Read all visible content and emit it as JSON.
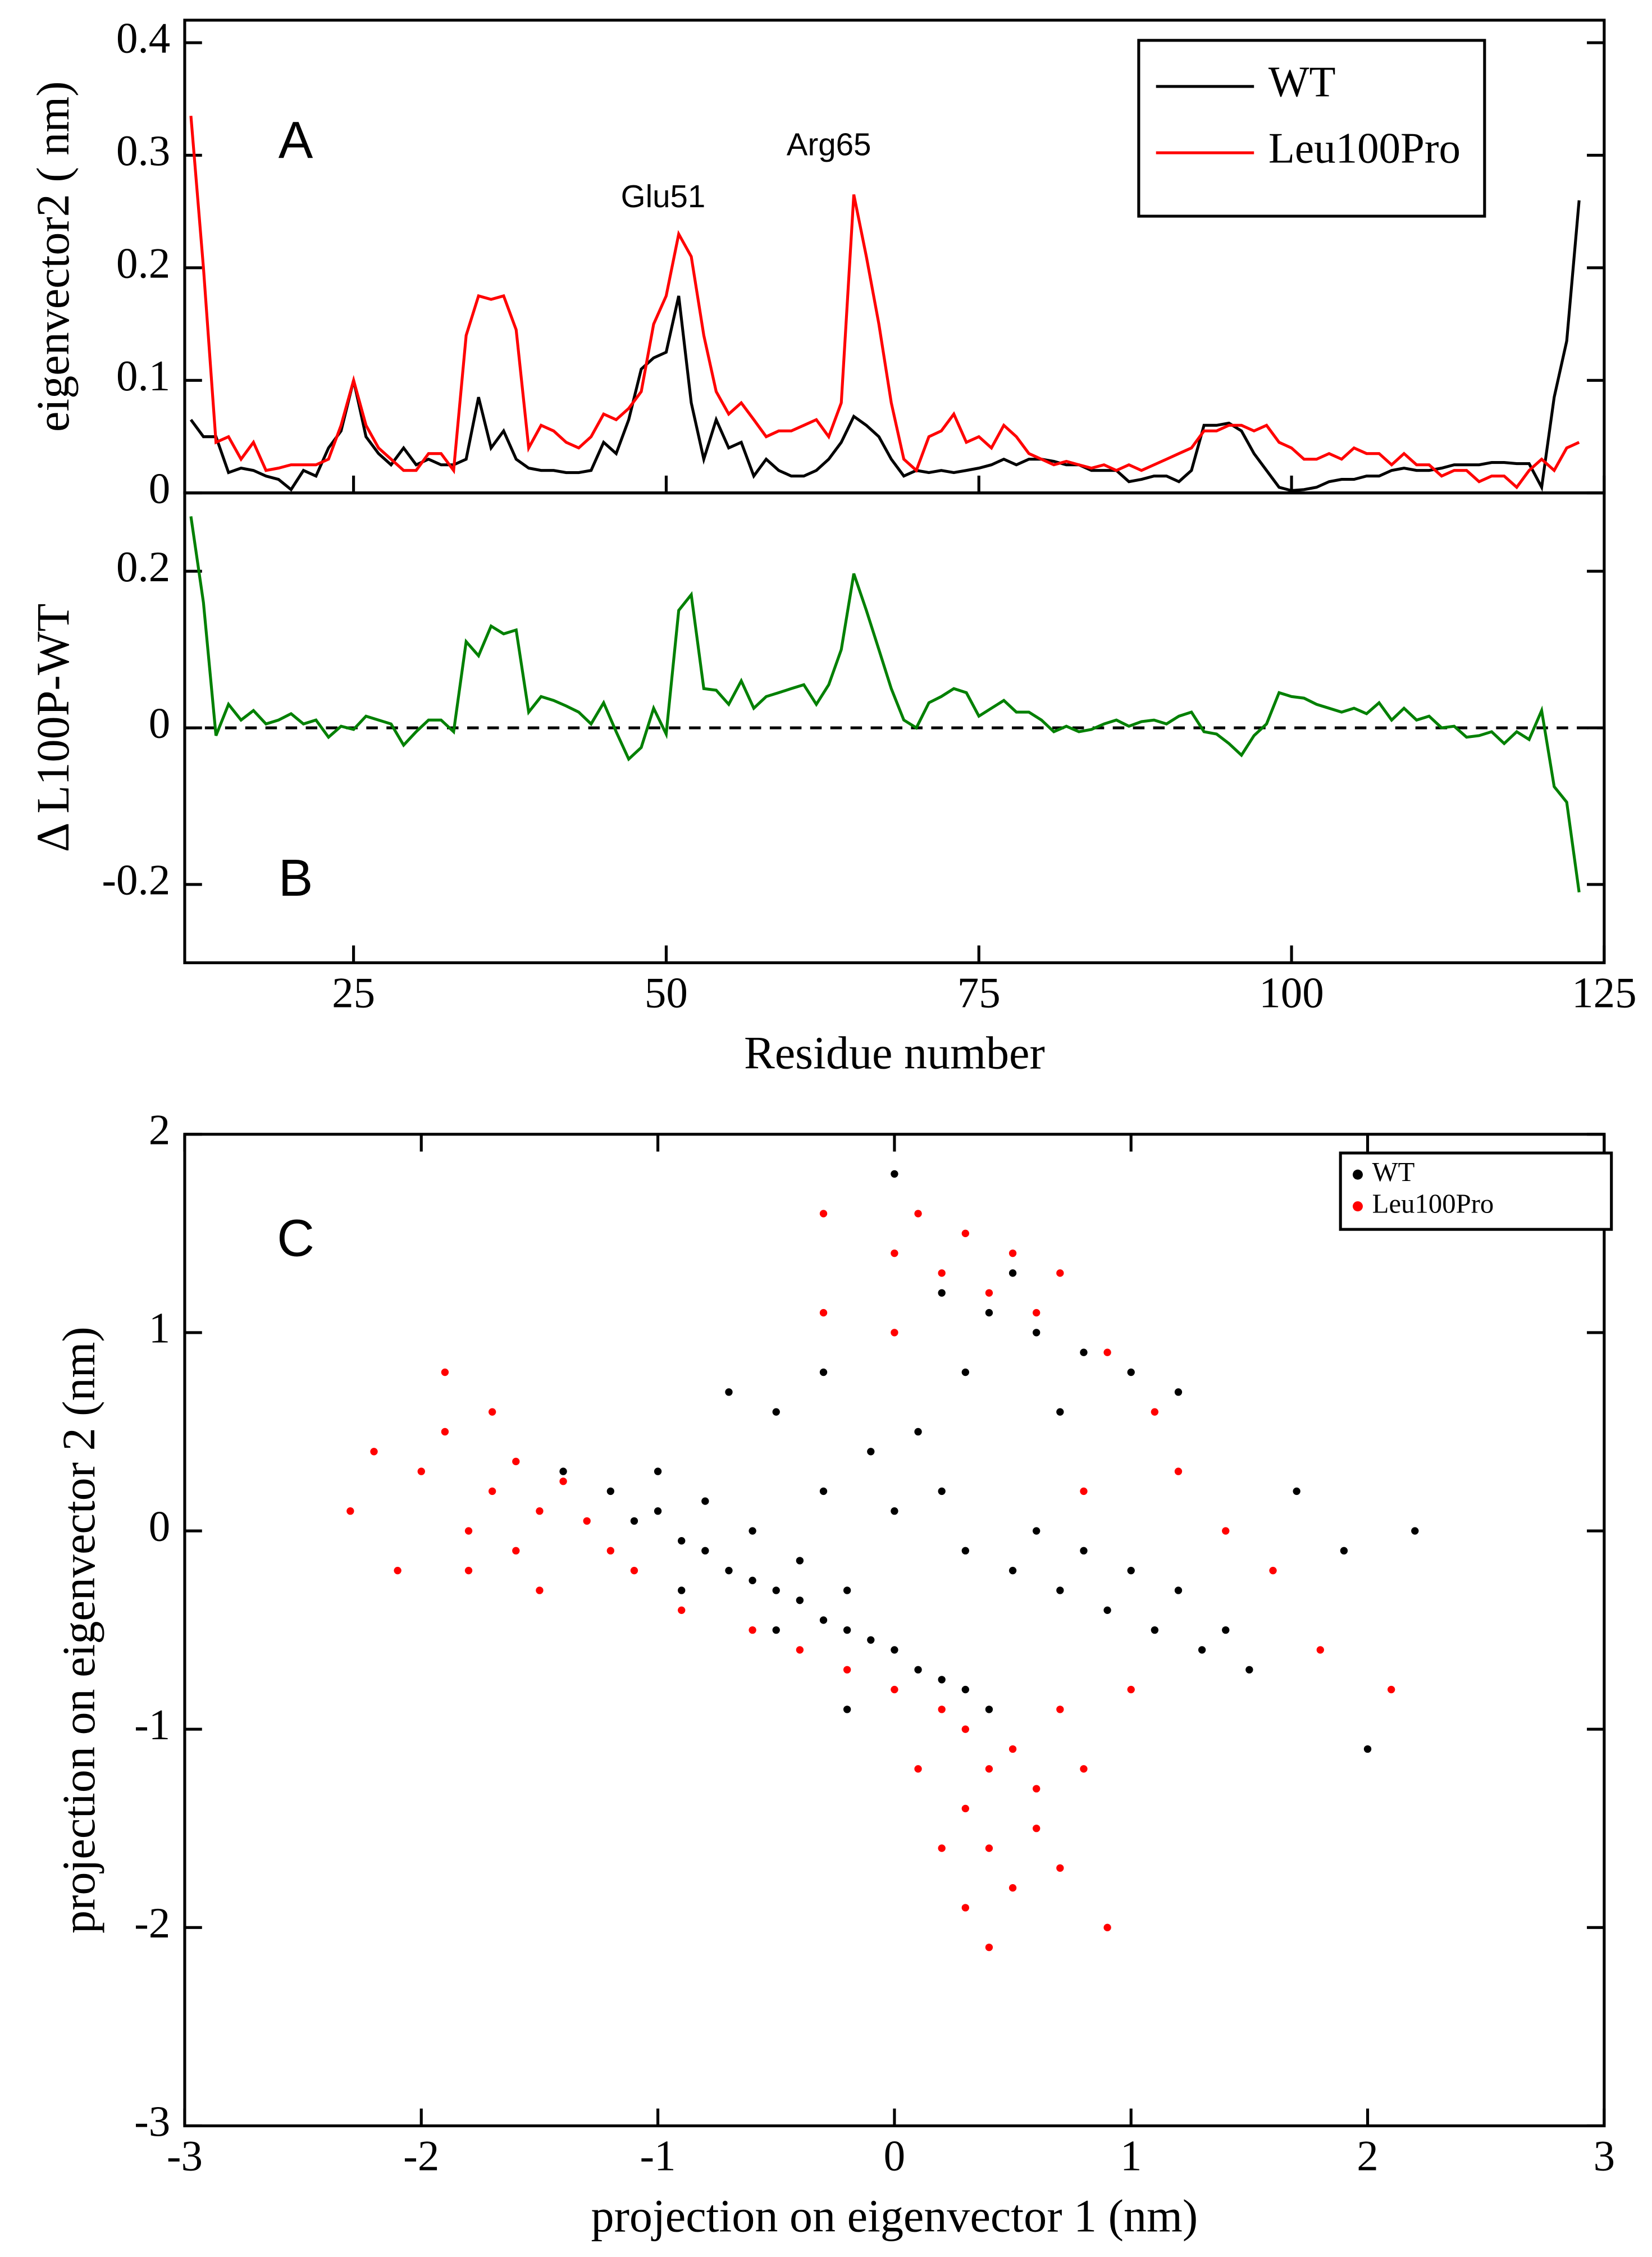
{
  "chart_data": [
    {
      "type": "line",
      "ylabel": "eigenvector2 ( nm)",
      "annotations": [
        "A",
        "Glu51",
        "Arg65"
      ],
      "legend": "upper right",
      "x": [
        12,
        13,
        14,
        15,
        16,
        17,
        18,
        19,
        20,
        21,
        22,
        23,
        24,
        25,
        26,
        27,
        28,
        29,
        30,
        31,
        32,
        33,
        34,
        35,
        36,
        37,
        38,
        39,
        40,
        41,
        42,
        43,
        44,
        45,
        46,
        47,
        48,
        49,
        50,
        51,
        52,
        53,
        54,
        55,
        56,
        57,
        58,
        59,
        60,
        61,
        62,
        63,
        64,
        65,
        66,
        67,
        68,
        69,
        70,
        71,
        72,
        73,
        74,
        75,
        76,
        77,
        78,
        79,
        80,
        81,
        82,
        83,
        84,
        85,
        86,
        87,
        88,
        89,
        90,
        91,
        92,
        93,
        94,
        95,
        96,
        97,
        98,
        99,
        100,
        101,
        102,
        103,
        104,
        105,
        106,
        107,
        108,
        109,
        110,
        111,
        112,
        113,
        114,
        115,
        116,
        117,
        118,
        119,
        120,
        121,
        122,
        123
      ],
      "xlim": [
        11.5,
        125
      ],
      "ylim": [
        0,
        0.42
      ],
      "yticks": [
        0,
        0.1,
        0.2,
        0.3,
        0.4
      ],
      "series": [
        {
          "name": "WT",
          "color": "#000000",
          "values": [
            0.065,
            0.05,
            0.05,
            0.018,
            0.022,
            0.02,
            0.015,
            0.012,
            0.003,
            0.02,
            0.015,
            0.04,
            0.055,
            0.1,
            0.05,
            0.035,
            0.025,
            0.04,
            0.025,
            0.03,
            0.025,
            0.025,
            0.03,
            0.085,
            0.04,
            0.055,
            0.03,
            0.022,
            0.02,
            0.02,
            0.018,
            0.018,
            0.02,
            0.045,
            0.035,
            0.065,
            0.11,
            0.12,
            0.125,
            0.175,
            0.08,
            0.03,
            0.065,
            0.04,
            0.045,
            0.015,
            0.03,
            0.02,
            0.015,
            0.015,
            0.02,
            0.03,
            0.045,
            0.068,
            0.06,
            0.05,
            0.03,
            0.015,
            0.02,
            0.018,
            0.02,
            0.018,
            0.02,
            0.022,
            0.025,
            0.03,
            0.025,
            0.03,
            0.03,
            0.028,
            0.025,
            0.025,
            0.02,
            0.02,
            0.02,
            0.01,
            0.012,
            0.015,
            0.015,
            0.01,
            0.02,
            0.06,
            0.06,
            0.062,
            0.055,
            0.035,
            0.02,
            0.005,
            0.002,
            0.003,
            0.005,
            0.01,
            0.012,
            0.012,
            0.015,
            0.015,
            0.02,
            0.022,
            0.02,
            0.02,
            0.022,
            0.025,
            0.025,
            0.025,
            0.027,
            0.027,
            0.026,
            0.026,
            0.005,
            0.085,
            0.135,
            0.26
          ]
        },
        {
          "name": "Leu100Pro",
          "color": "#ff0000",
          "values": [
            0.335,
            0.2,
            0.045,
            0.05,
            0.03,
            0.045,
            0.02,
            0.022,
            0.025,
            0.025,
            0.025,
            0.03,
            0.06,
            0.1,
            0.06,
            0.04,
            0.03,
            0.02,
            0.02,
            0.035,
            0.035,
            0.02,
            0.14,
            0.175,
            0.172,
            0.175,
            0.145,
            0.04,
            0.06,
            0.055,
            0.045,
            0.04,
            0.05,
            0.07,
            0.065,
            0.075,
            0.09,
            0.15,
            0.175,
            0.23,
            0.21,
            0.14,
            0.09,
            0.07,
            0.08,
            0.065,
            0.05,
            0.055,
            0.055,
            0.06,
            0.065,
            0.05,
            0.08,
            0.265,
            0.21,
            0.15,
            0.08,
            0.03,
            0.02,
            0.05,
            0.055,
            0.07,
            0.045,
            0.05,
            0.04,
            0.06,
            0.05,
            0.035,
            0.03,
            0.025,
            0.028,
            0.025,
            0.022,
            0.025,
            0.02,
            0.025,
            0.02,
            0.025,
            0.03,
            0.035,
            0.04,
            0.055,
            0.055,
            0.06,
            0.06,
            0.055,
            0.06,
            0.045,
            0.04,
            0.03,
            0.03,
            0.035,
            0.03,
            0.04,
            0.035,
            0.035,
            0.025,
            0.035,
            0.025,
            0.025,
            0.015,
            0.02,
            0.02,
            0.01,
            0.015,
            0.015,
            0.005,
            0.02,
            0.03,
            0.02,
            0.04,
            0.045
          ]
        }
      ]
    },
    {
      "type": "line",
      "ylabel": "Δ L100P-WT",
      "xlabel": "Residue number",
      "annotations": [
        "B"
      ],
      "zero_line": true,
      "x": [
        12,
        13,
        14,
        15,
        16,
        17,
        18,
        19,
        20,
        21,
        22,
        23,
        24,
        25,
        26,
        27,
        28,
        29,
        30,
        31,
        32,
        33,
        34,
        35,
        36,
        37,
        38,
        39,
        40,
        41,
        42,
        43,
        44,
        45,
        46,
        47,
        48,
        49,
        50,
        51,
        52,
        53,
        54,
        55,
        56,
        57,
        58,
        59,
        60,
        61,
        62,
        63,
        64,
        65,
        66,
        67,
        68,
        69,
        70,
        71,
        72,
        73,
        74,
        75,
        76,
        77,
        78,
        79,
        80,
        81,
        82,
        83,
        84,
        85,
        86,
        87,
        88,
        89,
        90,
        91,
        92,
        93,
        94,
        95,
        96,
        97,
        98,
        99,
        100,
        101,
        102,
        103,
        104,
        105,
        106,
        107,
        108,
        109,
        110,
        111,
        112,
        113,
        114,
        115,
        116,
        117,
        118,
        119,
        120,
        121,
        122,
        123
      ],
      "xlim": [
        11.5,
        125
      ],
      "xticks": [
        25,
        50,
        75,
        100,
        125
      ],
      "ylim": [
        -0.3,
        0.3
      ],
      "yticks": [
        -0.2,
        0,
        0.2
      ],
      "series": [
        {
          "color": "#008000",
          "values": [
            0.27,
            0.16,
            -0.01,
            0.03,
            0.01,
            0.022,
            0.005,
            0.01,
            0.018,
            0.005,
            0.01,
            -0.012,
            0.002,
            -0.002,
            0.015,
            0.01,
            0.005,
            -0.022,
            -0.005,
            0.01,
            0.01,
            -0.005,
            0.11,
            0.092,
            0.13,
            0.12,
            0.125,
            0.02,
            0.04,
            0.035,
            0.028,
            0.02,
            0.005,
            0.032,
            -0.005,
            -0.04,
            -0.025,
            0.025,
            -0.008,
            0.15,
            0.17,
            0.05,
            0.048,
            0.03,
            0.06,
            0.025,
            0.04,
            0.045,
            0.05,
            0.055,
            0.03,
            0.055,
            0.1,
            0.197,
            0.15,
            0.1,
            0.05,
            0.01,
            0,
            0.032,
            0.04,
            0.05,
            0.045,
            0.015,
            0.025,
            0.035,
            0.02,
            0.02,
            0.01,
            -0.005,
            0.002,
            -0.005,
            -0.002,
            0.005,
            0.01,
            0.002,
            0.008,
            0.01,
            0.005,
            0.015,
            0.02,
            -0.005,
            -0.008,
            -0.02,
            -0.035,
            -0.01,
            0.005,
            0.045,
            0.04,
            0.038,
            0.03,
            0.025,
            0.02,
            0.025,
            0.018,
            0.032,
            0.01,
            0.025,
            0.01,
            0.015,
            0,
            0.002,
            -0.012,
            -0.01,
            -0.005,
            -0.02,
            -0.005,
            -0.015,
            0.022,
            -0.075,
            -0.095,
            -0.21
          ]
        }
      ]
    },
    {
      "type": "scatter",
      "xlabel": "projection on eigenvector 1 (nm)",
      "ylabel": "projection on eigenvector 2 (nm)",
      "annotations": [
        "C"
      ],
      "legend": "upper right",
      "xlim": [
        -3,
        3
      ],
      "xticks": [
        -3,
        -2,
        -1,
        0,
        1,
        2,
        3
      ],
      "ylim": [
        -3,
        2
      ],
      "yticks": [
        -3,
        -2,
        -1,
        0,
        1,
        2
      ],
      "series": [
        {
          "name": "WT",
          "color": "#000000",
          "x": [
            -1.4,
            -1.2,
            -1.1,
            -1.0,
            -0.9,
            -0.8,
            -0.7,
            -0.6,
            -0.5,
            -0.4,
            -0.3,
            -0.2,
            -0.1,
            0.0,
            0.1,
            0.2,
            0.3,
            0.4,
            -1.0,
            -0.8,
            -0.6,
            -0.4,
            -0.2,
            -0.9,
            -0.5,
            -0.3,
            -0.1,
            0.1,
            0.0,
            0.2,
            0.3,
            0.5,
            0.7,
            0.9,
            1.1,
            1.3,
            1.5,
            0.6,
            0.8,
            1.0,
            1.2,
            1.4,
            0.2,
            0.4,
            0.6,
            0.8,
            1.0,
            1.2,
            0.5,
            0.3,
            0.7,
            -0.5,
            -0.7,
            -0.3,
            1.7,
            1.9,
            2.2,
            2.0,
            0.0,
            -0.2
          ],
          "values": [
            0.3,
            0.2,
            0.05,
            0.1,
            -0.05,
            -0.1,
            -0.2,
            -0.25,
            -0.3,
            -0.35,
            -0.45,
            -0.5,
            -0.55,
            -0.6,
            -0.7,
            -0.75,
            -0.8,
            -0.9,
            0.3,
            0.15,
            0.0,
            -0.15,
            -0.3,
            -0.3,
            -0.5,
            0.2,
            0.4,
            0.5,
            0.1,
            0.2,
            -0.1,
            -0.2,
            -0.3,
            -0.4,
            -0.5,
            -0.6,
            -0.7,
            0.0,
            -0.1,
            -0.2,
            -0.3,
            -0.5,
            1.2,
            1.1,
            1.0,
            0.9,
            0.8,
            0.7,
            1.3,
            0.8,
            0.6,
            0.6,
            0.7,
            0.8,
            0.2,
            -0.1,
            0.0,
            -1.1,
            1.8,
            -0.9
          ]
        },
        {
          "name": "Leu100Pro",
          "color": "#ff0000",
          "x": [
            -2.3,
            -2.0,
            -1.9,
            -1.8,
            -1.7,
            -1.6,
            -1.5,
            -1.4,
            -1.6,
            -1.8,
            -2.1,
            -1.3,
            -2.2,
            -1.7,
            -1.5,
            -1.9,
            -1.2,
            -1.1,
            -0.9,
            -0.6,
            -0.4,
            -0.2,
            0.0,
            0.2,
            0.3,
            0.4,
            0.5,
            0.6,
            0.3,
            0.4,
            0.5,
            0.3,
            0.6,
            0.8,
            0.2,
            0.7,
            0.4,
            0.9,
            0.1,
            0.7,
            0.0,
            0.1,
            0.2,
            0.3,
            0.4,
            0.5,
            0.6,
            -0.3,
            0.0,
            0.7,
            0.9,
            1.1,
            1.2,
            1.4,
            1.6,
            1.8,
            2.1,
            -0.3,
            1.0,
            0.8
          ],
          "values": [
            0.1,
            0.3,
            0.5,
            0.0,
            0.2,
            0.35,
            0.1,
            0.25,
            -0.1,
            -0.2,
            -0.2,
            0.05,
            0.4,
            0.6,
            -0.3,
            0.8,
            -0.1,
            -0.2,
            -0.4,
            -0.5,
            -0.6,
            -0.7,
            -0.8,
            -0.9,
            -1.0,
            -1.2,
            -1.1,
            -1.3,
            -1.4,
            -1.6,
            -1.8,
            -1.9,
            -1.5,
            -1.2,
            -1.6,
            -1.7,
            -2.1,
            -2.0,
            -1.2,
            -0.9,
            1.4,
            1.6,
            1.3,
            1.5,
            1.2,
            1.4,
            1.1,
            1.6,
            1.0,
            1.3,
            0.9,
            0.6,
            0.3,
            0.0,
            -0.2,
            -0.6,
            -0.8,
            1.1,
            -0.8,
            0.2
          ]
        }
      ]
    }
  ]
}
